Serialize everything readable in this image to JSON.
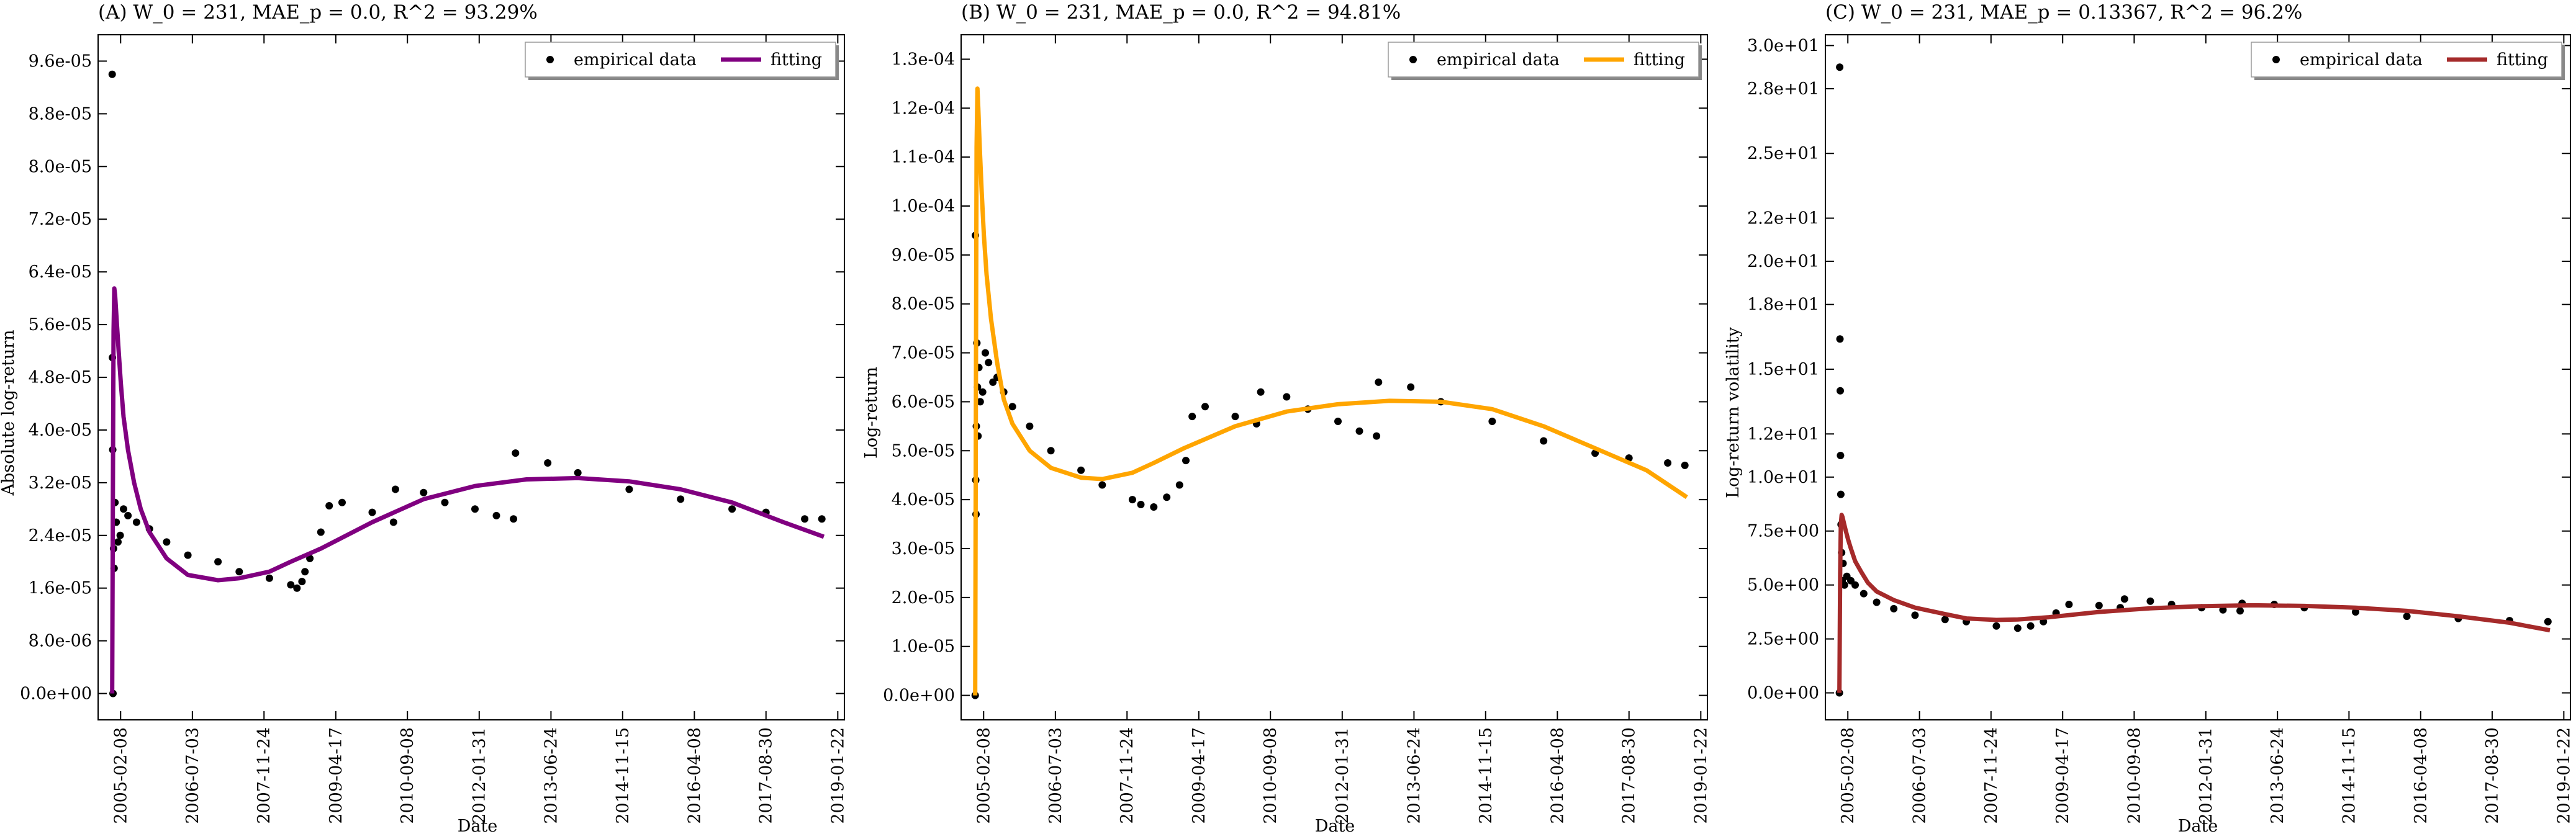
{
  "chart_data": [
    {
      "type": "scatter",
      "title": "(A) W_0 = 231, MAE_p = 0.0, R^2 = 93.29%",
      "xlabel": "Date",
      "ylabel": "Absolute log-return",
      "x_tick_labels": [
        "2005-02-08",
        "2006-07-03",
        "2007-11-24",
        "2009-04-17",
        "2010-09-08",
        "2012-01-31",
        "2013-06-24",
        "2014-11-15",
        "2016-04-08",
        "2017-08-30",
        "2019-01-22"
      ],
      "y_tick_labels": [
        "0.0e+00",
        "8.0e-06",
        "1.6e-05",
        "2.4e-05",
        "3.2e-05",
        "4.0e-05",
        "4.8e-05",
        "5.6e-05",
        "6.4e-05",
        "7.2e-05",
        "8.0e-05",
        "8.8e-05",
        "9.6e-05"
      ],
      "xlim": [
        "2004-09-01",
        "2019-03-10"
      ],
      "ylim": [
        -4e-06,
        0.0001
      ],
      "legend": {
        "position": "top-right",
        "entries": [
          "empirical data",
          "fitting"
        ]
      },
      "colors": {
        "empirical": "#000000",
        "fitting": "#800080"
      },
      "series": [
        {
          "name": "empirical data",
          "kind": "points",
          "x": [
            "2004-12-10",
            "2004-12-12",
            "2004-12-14",
            "2004-12-16",
            "2004-12-20",
            "2004-12-24",
            "2004-12-30",
            "2005-01-08",
            "2005-01-20",
            "2005-02-05",
            "2005-03-01",
            "2005-04-01",
            "2005-06-01",
            "2005-09-01",
            "2006-01-01",
            "2006-06-01",
            "2007-01-01",
            "2007-06-01",
            "2008-01-01",
            "2008-06-01",
            "2008-07-15",
            "2008-08-20",
            "2008-09-10",
            "2008-10-15",
            "2009-01-01",
            "2009-03-01",
            "2009-06-01",
            "2010-01-01",
            "2010-06-01",
            "2010-06-15",
            "2011-01-01",
            "2011-06-01",
            "2012-01-01",
            "2012-06-01",
            "2012-10-01",
            "2012-10-15",
            "2013-06-01",
            "2014-01-01",
            "2015-01-01",
            "2016-01-01",
            "2017-01-01",
            "2017-08-30",
            "2018-06-01",
            "2018-10-01"
          ],
          "y": [
            9.4e-05,
            5.1e-05,
            3.7e-05,
            0.0,
            2.2e-05,
            1.9e-05,
            2.9e-05,
            2.6e-05,
            2.3e-05,
            2.4e-05,
            2.8e-05,
            2.7e-05,
            2.6e-05,
            2.5e-05,
            2.3e-05,
            2.1e-05,
            2e-05,
            1.85e-05,
            1.75e-05,
            1.65e-05,
            1.6e-05,
            1.7e-05,
            1.85e-05,
            2.05e-05,
            2.45e-05,
            2.85e-05,
            2.9e-05,
            2.75e-05,
            2.6e-05,
            3.1e-05,
            3.05e-05,
            2.9e-05,
            2.8e-05,
            2.7e-05,
            2.65e-05,
            3.65e-05,
            3.5e-05,
            3.35e-05,
            3.1e-05,
            2.95e-05,
            2.8e-05,
            2.75e-05,
            2.65e-05,
            2.65e-05
          ]
        },
        {
          "name": "fitting",
          "kind": "line",
          "x": [
            "2004-12-10",
            "2004-12-15",
            "2004-12-20",
            "2004-12-25",
            "2004-12-31",
            "2005-01-10",
            "2005-01-25",
            "2005-02-10",
            "2005-03-01",
            "2005-04-01",
            "2005-05-15",
            "2005-07-01",
            "2005-09-01",
            "2006-01-01",
            "2006-06-01",
            "2007-01-01",
            "2007-06-01",
            "2008-01-01",
            "2008-06-01",
            "2009-01-01",
            "2010-01-01",
            "2011-01-01",
            "2012-01-01",
            "2013-01-01",
            "2014-01-01",
            "2015-01-01",
            "2016-01-01",
            "2017-01-01",
            "2018-01-01",
            "2018-10-15"
          ],
          "y": [
            0.0,
            3e-05,
            5.5e-05,
            6.15e-05,
            6.05e-05,
            5.7e-05,
            5.2e-05,
            4.7e-05,
            4.2e-05,
            3.7e-05,
            3.2e-05,
            2.8e-05,
            2.45e-05,
            2.05e-05,
            1.8e-05,
            1.72e-05,
            1.75e-05,
            1.85e-05,
            2e-05,
            2.2e-05,
            2.6e-05,
            2.95e-05,
            3.15e-05,
            3.25e-05,
            3.27e-05,
            3.22e-05,
            3.1e-05,
            2.9e-05,
            2.6e-05,
            2.38e-05
          ]
        }
      ]
    },
    {
      "type": "scatter",
      "title": "(B) W_0 = 231, MAE_p = 0.0, R^2 = 94.81%",
      "xlabel": "Date",
      "ylabel": "Log-return",
      "x_tick_labels": [
        "2005-02-08",
        "2006-07-03",
        "2007-11-24",
        "2009-04-17",
        "2010-09-08",
        "2012-01-31",
        "2013-06-24",
        "2014-11-15",
        "2016-04-08",
        "2017-08-30",
        "2019-01-22"
      ],
      "y_tick_labels": [
        "0.0e+00",
        "1.0e-05",
        "2.0e-05",
        "3.0e-05",
        "4.0e-05",
        "5.0e-05",
        "6.0e-05",
        "7.0e-05",
        "8.0e-05",
        "9.0e-05",
        "1.0e-04",
        "1.1e-04",
        "1.2e-04",
        "1.3e-04"
      ],
      "xlim": [
        "2004-09-01",
        "2019-03-10"
      ],
      "ylim": [
        -5e-06,
        0.000135
      ],
      "legend": {
        "position": "top-right",
        "entries": [
          "empirical data",
          "fitting"
        ]
      },
      "colors": {
        "empirical": "#000000",
        "fitting": "#FFA500"
      },
      "series": [
        {
          "name": "empirical data",
          "kind": "points",
          "x": [
            "2004-12-10",
            "2004-12-12",
            "2004-12-14",
            "2004-12-16",
            "2004-12-18",
            "2004-12-22",
            "2004-12-26",
            "2004-12-30",
            "2005-01-05",
            "2005-01-15",
            "2005-02-01",
            "2005-02-20",
            "2005-03-15",
            "2005-04-15",
            "2005-05-15",
            "2005-07-01",
            "2005-09-01",
            "2006-01-01",
            "2006-06-01",
            "2007-01-01",
            "2007-06-01",
            "2008-01-01",
            "2008-03-01",
            "2008-06-01",
            "2008-09-01",
            "2008-12-01",
            "2009-01-15",
            "2009-03-01",
            "2009-06-01",
            "2010-01-01",
            "2010-06-01",
            "2010-07-01",
            "2011-01-01",
            "2011-06-01",
            "2012-01-01",
            "2012-06-01",
            "2012-10-01",
            "2012-10-15",
            "2013-06-01",
            "2014-01-01",
            "2015-01-01",
            "2016-01-01",
            "2017-01-01",
            "2017-08-30",
            "2018-06-01",
            "2018-10-01"
          ],
          "y": [
            0.0,
            9.4e-05,
            4.4e-05,
            3.7e-05,
            5.5e-05,
            7.2e-05,
            6.3e-05,
            5.3e-05,
            6.7e-05,
            6e-05,
            6.2e-05,
            7e-05,
            6.8e-05,
            6.4e-05,
            6.5e-05,
            6.2e-05,
            5.9e-05,
            5.5e-05,
            5e-05,
            4.6e-05,
            4.3e-05,
            4e-05,
            3.9e-05,
            3.85e-05,
            4.05e-05,
            4.3e-05,
            4.8e-05,
            5.7e-05,
            5.9e-05,
            5.7e-05,
            5.55e-05,
            6.2e-05,
            6.1e-05,
            5.85e-05,
            5.6e-05,
            5.4e-05,
            5.3e-05,
            6.4e-05,
            6.3e-05,
            6e-05,
            5.6e-05,
            5.2e-05,
            4.95e-05,
            4.85e-05,
            4.75e-05,
            4.7e-05
          ]
        },
        {
          "name": "fitting",
          "kind": "line",
          "x": [
            "2004-12-10",
            "2004-12-15",
            "2004-12-20",
            "2004-12-26",
            "2005-01-01",
            "2005-01-10",
            "2005-01-25",
            "2005-02-10",
            "2005-03-01",
            "2005-04-01",
            "2005-05-15",
            "2005-07-01",
            "2005-09-01",
            "2006-01-01",
            "2006-06-01",
            "2007-01-01",
            "2007-06-01",
            "2008-01-01",
            "2008-06-01",
            "2009-01-01",
            "2010-01-01",
            "2011-01-01",
            "2012-01-01",
            "2013-01-01",
            "2014-01-01",
            "2015-01-01",
            "2016-01-01",
            "2017-01-01",
            "2018-01-01",
            "2018-10-15"
          ],
          "y": [
            0.0,
            6e-05,
            0.000112,
            0.000124,
            0.00012,
            0.000113,
            0.000103,
            9.4e-05,
            8.6e-05,
            7.7e-05,
            6.8e-05,
            6.05e-05,
            5.55e-05,
            5e-05,
            4.65e-05,
            4.45e-05,
            4.42e-05,
            4.55e-05,
            4.75e-05,
            5.05e-05,
            5.5e-05,
            5.8e-05,
            5.95e-05,
            6.02e-05,
            6e-05,
            5.85e-05,
            5.5e-05,
            5.05e-05,
            4.6e-05,
            4.05e-05
          ]
        }
      ]
    },
    {
      "type": "scatter",
      "title": "(C) W_0 = 231, MAE_p = 0.13367, R^2 = 96.2%",
      "xlabel": "Date",
      "ylabel": "Log-return volatility",
      "x_tick_labels": [
        "2005-02-08",
        "2006-07-03",
        "2007-11-24",
        "2009-04-17",
        "2010-09-08",
        "2012-01-31",
        "2013-06-24",
        "2014-11-15",
        "2016-04-08",
        "2017-08-30",
        "2019-01-22"
      ],
      "y_tick_labels": [
        "0.0e+00",
        "2.5e+00",
        "5.0e+00",
        "7.5e+00",
        "1.0e+01",
        "1.2e+01",
        "1.5e+01",
        "1.8e+01",
        "2.0e+01",
        "2.2e+01",
        "2.5e+01",
        "2.8e+01",
        "3.0e+01"
      ],
      "xlim": [
        "2004-09-01",
        "2019-03-10"
      ],
      "ylim": [
        -1.25,
        30.5
      ],
      "legend": {
        "position": "top-right",
        "entries": [
          "empirical data",
          "fitting"
        ]
      },
      "colors": {
        "empirical": "#000000",
        "fitting": "#A52A2A"
      },
      "series": [
        {
          "name": "empirical data",
          "kind": "points",
          "x": [
            "2004-12-10",
            "2004-12-12",
            "2004-12-14",
            "2004-12-16",
            "2004-12-18",
            "2004-12-20",
            "2004-12-22",
            "2004-12-26",
            "2004-12-30",
            "2005-01-05",
            "2005-01-15",
            "2005-02-01",
            "2005-03-01",
            "2005-04-01",
            "2005-06-01",
            "2005-09-01",
            "2006-01-01",
            "2006-06-01",
            "2007-01-01",
            "2007-06-01",
            "2008-01-01",
            "2008-06-01",
            "2008-09-01",
            "2008-12-01",
            "2009-03-01",
            "2009-06-01",
            "2010-01-01",
            "2010-06-01",
            "2010-07-01",
            "2011-01-01",
            "2011-06-01",
            "2012-01-01",
            "2012-06-01",
            "2012-10-01",
            "2012-10-15",
            "2013-06-01",
            "2014-01-01",
            "2015-01-01",
            "2016-01-01",
            "2017-01-01",
            "2018-01-01",
            "2018-10-01"
          ],
          "y": [
            0.0,
            29.0,
            16.4,
            14.0,
            11.0,
            9.2,
            7.8,
            6.5,
            5.2,
            6.0,
            5.0,
            5.4,
            5.2,
            5.0,
            4.6,
            4.2,
            3.9,
            3.6,
            3.4,
            3.3,
            3.1,
            3.0,
            3.1,
            3.3,
            3.7,
            4.1,
            4.05,
            3.95,
            4.35,
            4.25,
            4.1,
            3.95,
            3.85,
            3.8,
            4.15,
            4.1,
            3.95,
            3.75,
            3.55,
            3.45,
            3.35,
            3.3
          ]
        },
        {
          "name": "fitting",
          "kind": "line",
          "x": [
            "2004-12-10",
            "2004-12-15",
            "2004-12-20",
            "2004-12-26",
            "2005-01-01",
            "2005-01-10",
            "2005-01-25",
            "2005-02-10",
            "2005-03-01",
            "2005-04-01",
            "2005-05-15",
            "2005-07-01",
            "2005-09-01",
            "2006-01-01",
            "2006-06-01",
            "2007-01-01",
            "2007-06-01",
            "2008-01-01",
            "2008-06-01",
            "2009-01-01",
            "2010-01-01",
            "2011-01-01",
            "2012-01-01",
            "2013-01-01",
            "2014-01-01",
            "2015-01-01",
            "2016-01-01",
            "2017-01-01",
            "2018-01-01",
            "2018-10-15"
          ],
          "y": [
            0.0,
            5.5,
            7.8,
            8.25,
            8.15,
            7.9,
            7.5,
            7.1,
            6.7,
            6.1,
            5.6,
            5.1,
            4.7,
            4.3,
            3.95,
            3.65,
            3.45,
            3.38,
            3.4,
            3.5,
            3.75,
            3.92,
            4.02,
            4.06,
            4.03,
            3.95,
            3.8,
            3.55,
            3.25,
            2.9
          ]
        }
      ]
    }
  ]
}
